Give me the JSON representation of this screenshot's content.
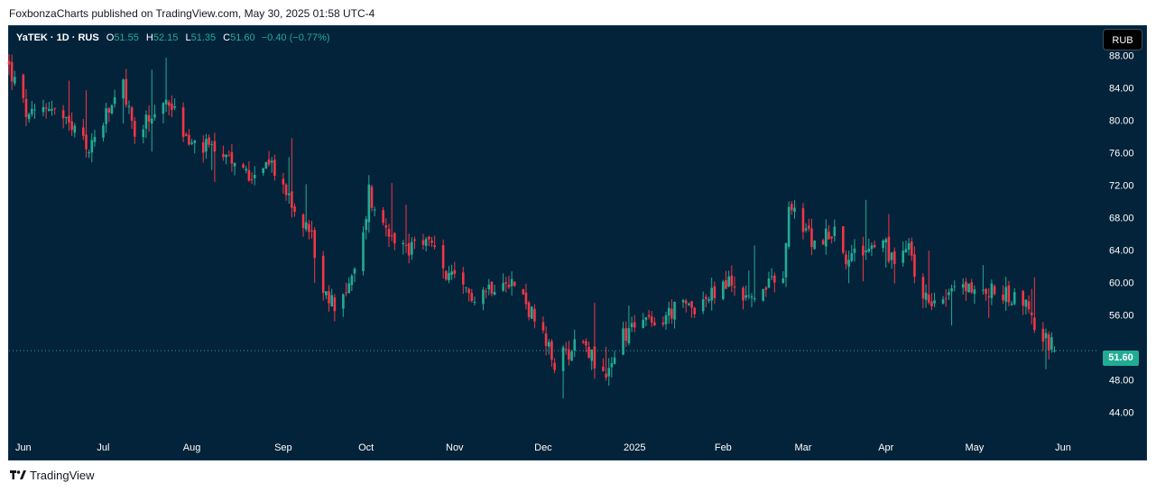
{
  "header": {
    "attribution": "FoxbonzaCharts published on TradingView.com, May 30, 2025 01:58 UTC-4"
  },
  "legend": {
    "symbol": "YaTEK · 1D · RUS",
    "open_label": "O",
    "open": "51.55",
    "high_label": "H",
    "high": "52.15",
    "low_label": "L",
    "low": "51.35",
    "close_label": "C",
    "close": "51.60",
    "change": "−0.40 (−0.77%)"
  },
  "currency_button": "RUB",
  "last_price_tag": "51.60",
  "footer": {
    "logo_text": "TradingView",
    "logo_icon": "tradingview-logo-icon"
  },
  "colors": {
    "background": "#03233a",
    "up": "#22ab94",
    "down": "#f23645",
    "axis_text": "#ffffff",
    "price_line": "#22ab94"
  },
  "chart_data": {
    "type": "candlestick",
    "symbol": "YaTEK",
    "interval": "1D",
    "currency": "RUB",
    "last_price": 51.6,
    "ylim": [
      41.5,
      91.5
    ],
    "y_ticks": [
      88,
      84,
      80,
      76,
      72,
      68,
      64,
      60,
      56,
      51.6,
      48,
      44
    ],
    "y_tick_labels": [
      "88.00",
      "84.00",
      "80.00",
      "76.00",
      "72.00",
      "68.00",
      "64.00",
      "60.00",
      "56.00",
      "48.00",
      "44.00"
    ],
    "x_ticks": [
      {
        "label": "Jun",
        "date": "2024-06-03"
      },
      {
        "label": "Jul",
        "date": "2024-07-01"
      },
      {
        "label": "Aug",
        "date": "2024-08-01"
      },
      {
        "label": "Sep",
        "date": "2024-09-02"
      },
      {
        "label": "Oct",
        "date": "2024-10-01"
      },
      {
        "label": "Nov",
        "date": "2024-11-01"
      },
      {
        "label": "Dec",
        "date": "2024-12-02"
      },
      {
        "label": "2025",
        "date": "2025-01-03"
      },
      {
        "label": "Feb",
        "date": "2025-02-03"
      },
      {
        "label": "Mar",
        "date": "2025-03-03"
      },
      {
        "label": "Apr",
        "date": "2025-04-01"
      },
      {
        "label": "May",
        "date": "2025-05-02"
      },
      {
        "label": "Jun",
        "date": "2025-06-02"
      }
    ],
    "x_range": [
      "2024-05-29",
      "2025-06-14"
    ],
    "anchor_closes": [
      [
        "2024-05-29",
        86.5
      ],
      [
        "2024-06-05",
        80.0
      ],
      [
        "2024-06-12",
        82.0
      ],
      [
        "2024-06-19",
        79.0
      ],
      [
        "2024-06-26",
        76.5
      ],
      [
        "2024-07-03",
        81.0
      ],
      [
        "2024-07-08",
        84.0
      ],
      [
        "2024-07-12",
        78.0
      ],
      [
        "2024-07-18",
        80.5
      ],
      [
        "2024-07-24",
        82.5
      ],
      [
        "2024-07-31",
        77.0
      ],
      [
        "2024-08-07",
        76.5
      ],
      [
        "2024-08-14",
        74.5
      ],
      [
        "2024-08-21",
        73.5
      ],
      [
        "2024-08-27",
        75.0
      ],
      [
        "2024-09-02",
        72.0
      ],
      [
        "2024-09-06",
        68.5
      ],
      [
        "2024-09-12",
        66.0
      ],
      [
        "2024-09-16",
        58.0
      ],
      [
        "2024-09-20",
        57.5
      ],
      [
        "2024-09-26",
        60.0
      ],
      [
        "2024-09-30",
        65.5
      ],
      [
        "2024-10-02",
        71.5
      ],
      [
        "2024-10-04",
        68.5
      ],
      [
        "2024-10-10",
        66.5
      ],
      [
        "2024-10-16",
        63.5
      ],
      [
        "2024-10-22",
        65.5
      ],
      [
        "2024-10-29",
        61.0
      ],
      [
        "2024-11-05",
        58.5
      ],
      [
        "2024-11-11",
        59.0
      ],
      [
        "2024-11-19",
        61.0
      ],
      [
        "2024-11-26",
        57.5
      ],
      [
        "2024-12-02",
        53.0
      ],
      [
        "2024-12-06",
        50.0
      ],
      [
        "2024-12-12",
        52.0
      ],
      [
        "2024-12-16",
        53.5
      ],
      [
        "2024-12-20",
        50.0
      ],
      [
        "2024-12-24",
        48.0
      ],
      [
        "2024-12-27",
        51.5
      ],
      [
        "2025-01-03",
        55.5
      ],
      [
        "2025-01-10",
        54.5
      ],
      [
        "2025-01-16",
        56.5
      ],
      [
        "2025-01-22",
        57.0
      ],
      [
        "2025-01-29",
        58.0
      ],
      [
        "2025-02-05",
        60.0
      ],
      [
        "2025-02-12",
        58.0
      ],
      [
        "2025-02-19",
        59.5
      ],
      [
        "2025-02-24",
        60.5
      ],
      [
        "2025-02-26",
        69.0
      ],
      [
        "2025-03-03",
        67.0
      ],
      [
        "2025-03-07",
        64.5
      ],
      [
        "2025-03-13",
        66.5
      ],
      [
        "2025-03-19",
        62.5
      ],
      [
        "2025-03-25",
        64.5
      ],
      [
        "2025-03-31",
        65.0
      ],
      [
        "2025-04-04",
        62.0
      ],
      [
        "2025-04-09",
        64.0
      ],
      [
        "2025-04-14",
        58.0
      ],
      [
        "2025-04-21",
        58.5
      ],
      [
        "2025-04-28",
        59.5
      ],
      [
        "2025-05-05",
        59.0
      ],
      [
        "2025-05-12",
        58.5
      ],
      [
        "2025-05-19",
        58.0
      ],
      [
        "2025-05-23",
        55.0
      ],
      [
        "2025-05-27",
        53.0
      ],
      [
        "2025-05-30",
        51.6
      ]
    ]
  }
}
